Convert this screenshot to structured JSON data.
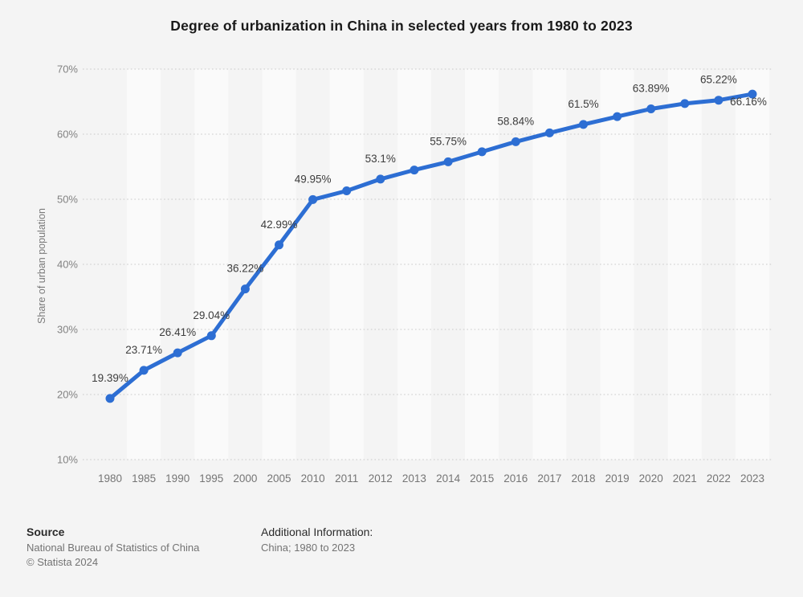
{
  "header": {
    "title": "Degree of urbanization in China in selected years from 1980 to 2023"
  },
  "chart_data": {
    "type": "line",
    "title": "Degree of urbanization in China in selected years from 1980 to 2023",
    "xlabel": "",
    "ylabel": "Share of urban population",
    "ylim": [
      10,
      70
    ],
    "yticks": [
      70,
      60,
      50,
      40,
      30,
      20,
      10
    ],
    "ytick_suffix": "%",
    "grid": "horizontal-dotted",
    "legend": "none",
    "plot_bands": "alternating-vertical",
    "categories": [
      "1980",
      "1985",
      "1990",
      "1995",
      "2000",
      "2005",
      "2010",
      "2011",
      "2012",
      "2013",
      "2014",
      "2015",
      "2016",
      "2017",
      "2018",
      "2019",
      "2020",
      "2021",
      "2022",
      "2023"
    ],
    "series": [
      {
        "name": "Share of urban population",
        "values": [
          19.39,
          23.71,
          26.41,
          29.04,
          36.22,
          42.99,
          49.95,
          51.3,
          53.1,
          54.5,
          55.75,
          57.3,
          58.84,
          60.2,
          61.5,
          62.7,
          63.89,
          64.7,
          65.22,
          66.16
        ],
        "point_labels": [
          "19.39%",
          "23.71%",
          "26.41%",
          "29.04%",
          "36.22%",
          "42.99%",
          "49.95%",
          "",
          "53.1%",
          "",
          "55.75%",
          "",
          "58.84%",
          "",
          "61.5%",
          "",
          "63.89%",
          "",
          "65.22%",
          "66.16%"
        ],
        "point_label_positions": [
          "above",
          "above",
          "above",
          "above",
          "above",
          "above",
          "above",
          "",
          "above",
          "",
          "above",
          "",
          "above",
          "",
          "above",
          "",
          "above",
          "",
          "above",
          "below"
        ]
      }
    ],
    "colors": {
      "line": "#2d6ed3",
      "point": "#2d6ed3",
      "band_light": "#fafafa",
      "grid": "#c9c9c9",
      "background": "#f4f4f4",
      "ytick_text": "#828282",
      "xtick_text": "#757575",
      "data_label_text": "#3d3d3d"
    }
  },
  "footer": {
    "source_heading": "Source",
    "source_line1": "National Bureau of Statistics of China",
    "source_line2": "© Statista 2024",
    "additional_heading": "Additional Information:",
    "additional_line1": "China; 1980 to 2023"
  }
}
